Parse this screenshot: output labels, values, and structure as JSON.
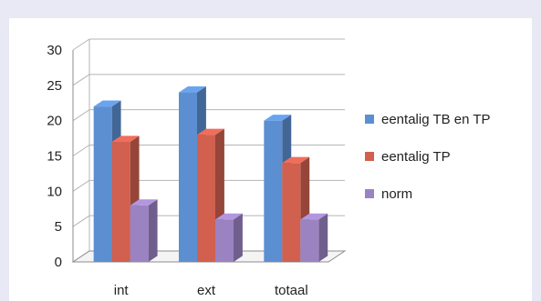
{
  "chart_data": {
    "type": "bar",
    "categories": [
      "int",
      "ext",
      "totaal"
    ],
    "series": [
      {
        "name": "eentalig TB en TP",
        "values": [
          22,
          24,
          20
        ],
        "color": "#5b8fd1"
      },
      {
        "name": "eentalig TP",
        "values": [
          17,
          18,
          14
        ],
        "color": "#d1604f"
      },
      {
        "name": "norm",
        "values": [
          8,
          6,
          6
        ],
        "color": "#9b83c2"
      }
    ],
    "ylim": [
      0,
      30
    ],
    "yticks": [
      "0",
      "5",
      "10",
      "15",
      "20",
      "25",
      "30"
    ],
    "grid": true,
    "legend": "right",
    "style": "3d-column"
  }
}
